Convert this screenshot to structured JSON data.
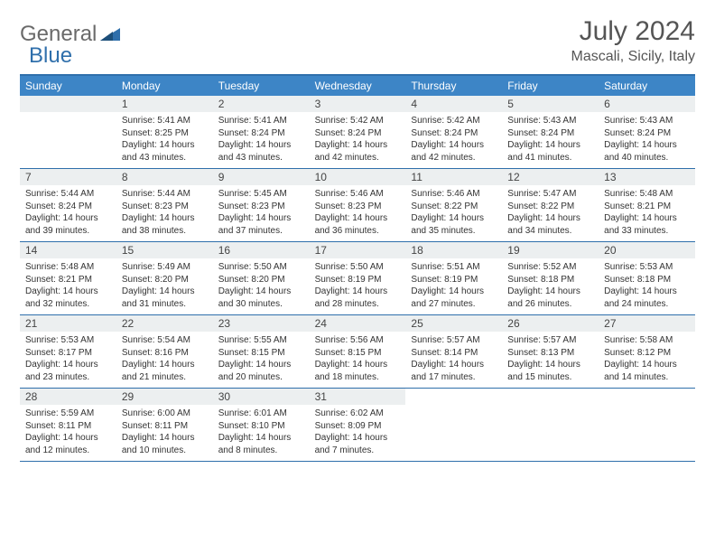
{
  "logo": {
    "part1": "General",
    "part2": "Blue"
  },
  "title": "July 2024",
  "location": "Mascali, Sicily, Italy",
  "colors": {
    "header_bg": "#3d85c6",
    "header_border": "#2f6fab",
    "daynum_bg": "#eceff0",
    "text": "#333333",
    "logo_gray": "#6a6a6a",
    "logo_blue": "#2f6fab"
  },
  "day_names": [
    "Sunday",
    "Monday",
    "Tuesday",
    "Wednesday",
    "Thursday",
    "Friday",
    "Saturday"
  ],
  "weeks": [
    [
      {
        "n": "",
        "sr": "",
        "ss": "",
        "dl": ""
      },
      {
        "n": "1",
        "sr": "Sunrise: 5:41 AM",
        "ss": "Sunset: 8:25 PM",
        "dl": "Daylight: 14 hours and 43 minutes."
      },
      {
        "n": "2",
        "sr": "Sunrise: 5:41 AM",
        "ss": "Sunset: 8:24 PM",
        "dl": "Daylight: 14 hours and 43 minutes."
      },
      {
        "n": "3",
        "sr": "Sunrise: 5:42 AM",
        "ss": "Sunset: 8:24 PM",
        "dl": "Daylight: 14 hours and 42 minutes."
      },
      {
        "n": "4",
        "sr": "Sunrise: 5:42 AM",
        "ss": "Sunset: 8:24 PM",
        "dl": "Daylight: 14 hours and 42 minutes."
      },
      {
        "n": "5",
        "sr": "Sunrise: 5:43 AM",
        "ss": "Sunset: 8:24 PM",
        "dl": "Daylight: 14 hours and 41 minutes."
      },
      {
        "n": "6",
        "sr": "Sunrise: 5:43 AM",
        "ss": "Sunset: 8:24 PM",
        "dl": "Daylight: 14 hours and 40 minutes."
      }
    ],
    [
      {
        "n": "7",
        "sr": "Sunrise: 5:44 AM",
        "ss": "Sunset: 8:24 PM",
        "dl": "Daylight: 14 hours and 39 minutes."
      },
      {
        "n": "8",
        "sr": "Sunrise: 5:44 AM",
        "ss": "Sunset: 8:23 PM",
        "dl": "Daylight: 14 hours and 38 minutes."
      },
      {
        "n": "9",
        "sr": "Sunrise: 5:45 AM",
        "ss": "Sunset: 8:23 PM",
        "dl": "Daylight: 14 hours and 37 minutes."
      },
      {
        "n": "10",
        "sr": "Sunrise: 5:46 AM",
        "ss": "Sunset: 8:23 PM",
        "dl": "Daylight: 14 hours and 36 minutes."
      },
      {
        "n": "11",
        "sr": "Sunrise: 5:46 AM",
        "ss": "Sunset: 8:22 PM",
        "dl": "Daylight: 14 hours and 35 minutes."
      },
      {
        "n": "12",
        "sr": "Sunrise: 5:47 AM",
        "ss": "Sunset: 8:22 PM",
        "dl": "Daylight: 14 hours and 34 minutes."
      },
      {
        "n": "13",
        "sr": "Sunrise: 5:48 AM",
        "ss": "Sunset: 8:21 PM",
        "dl": "Daylight: 14 hours and 33 minutes."
      }
    ],
    [
      {
        "n": "14",
        "sr": "Sunrise: 5:48 AM",
        "ss": "Sunset: 8:21 PM",
        "dl": "Daylight: 14 hours and 32 minutes."
      },
      {
        "n": "15",
        "sr": "Sunrise: 5:49 AM",
        "ss": "Sunset: 8:20 PM",
        "dl": "Daylight: 14 hours and 31 minutes."
      },
      {
        "n": "16",
        "sr": "Sunrise: 5:50 AM",
        "ss": "Sunset: 8:20 PM",
        "dl": "Daylight: 14 hours and 30 minutes."
      },
      {
        "n": "17",
        "sr": "Sunrise: 5:50 AM",
        "ss": "Sunset: 8:19 PM",
        "dl": "Daylight: 14 hours and 28 minutes."
      },
      {
        "n": "18",
        "sr": "Sunrise: 5:51 AM",
        "ss": "Sunset: 8:19 PM",
        "dl": "Daylight: 14 hours and 27 minutes."
      },
      {
        "n": "19",
        "sr": "Sunrise: 5:52 AM",
        "ss": "Sunset: 8:18 PM",
        "dl": "Daylight: 14 hours and 26 minutes."
      },
      {
        "n": "20",
        "sr": "Sunrise: 5:53 AM",
        "ss": "Sunset: 8:18 PM",
        "dl": "Daylight: 14 hours and 24 minutes."
      }
    ],
    [
      {
        "n": "21",
        "sr": "Sunrise: 5:53 AM",
        "ss": "Sunset: 8:17 PM",
        "dl": "Daylight: 14 hours and 23 minutes."
      },
      {
        "n": "22",
        "sr": "Sunrise: 5:54 AM",
        "ss": "Sunset: 8:16 PM",
        "dl": "Daylight: 14 hours and 21 minutes."
      },
      {
        "n": "23",
        "sr": "Sunrise: 5:55 AM",
        "ss": "Sunset: 8:15 PM",
        "dl": "Daylight: 14 hours and 20 minutes."
      },
      {
        "n": "24",
        "sr": "Sunrise: 5:56 AM",
        "ss": "Sunset: 8:15 PM",
        "dl": "Daylight: 14 hours and 18 minutes."
      },
      {
        "n": "25",
        "sr": "Sunrise: 5:57 AM",
        "ss": "Sunset: 8:14 PM",
        "dl": "Daylight: 14 hours and 17 minutes."
      },
      {
        "n": "26",
        "sr": "Sunrise: 5:57 AM",
        "ss": "Sunset: 8:13 PM",
        "dl": "Daylight: 14 hours and 15 minutes."
      },
      {
        "n": "27",
        "sr": "Sunrise: 5:58 AM",
        "ss": "Sunset: 8:12 PM",
        "dl": "Daylight: 14 hours and 14 minutes."
      }
    ],
    [
      {
        "n": "28",
        "sr": "Sunrise: 5:59 AM",
        "ss": "Sunset: 8:11 PM",
        "dl": "Daylight: 14 hours and 12 minutes."
      },
      {
        "n": "29",
        "sr": "Sunrise: 6:00 AM",
        "ss": "Sunset: 8:11 PM",
        "dl": "Daylight: 14 hours and 10 minutes."
      },
      {
        "n": "30",
        "sr": "Sunrise: 6:01 AM",
        "ss": "Sunset: 8:10 PM",
        "dl": "Daylight: 14 hours and 8 minutes."
      },
      {
        "n": "31",
        "sr": "Sunrise: 6:02 AM",
        "ss": "Sunset: 8:09 PM",
        "dl": "Daylight: 14 hours and 7 minutes."
      },
      {
        "n": "",
        "sr": "",
        "ss": "",
        "dl": ""
      },
      {
        "n": "",
        "sr": "",
        "ss": "",
        "dl": ""
      },
      {
        "n": "",
        "sr": "",
        "ss": "",
        "dl": ""
      }
    ]
  ]
}
